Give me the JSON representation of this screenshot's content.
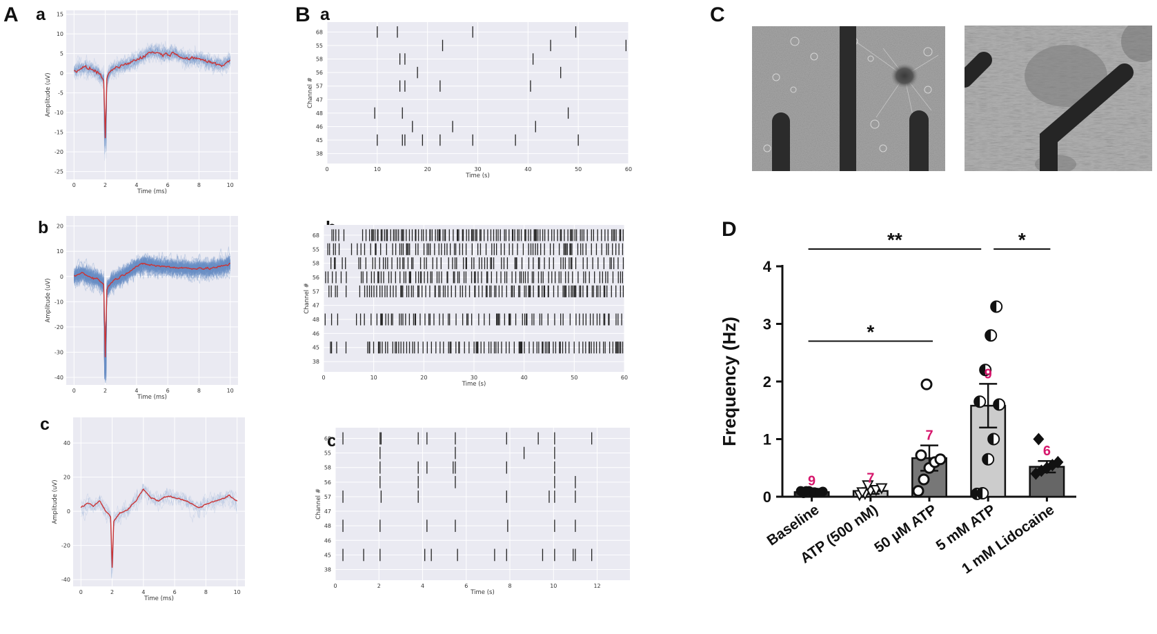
{
  "panels": {
    "A": "A",
    "B": "B",
    "C": "C",
    "D": "D",
    "sub_a": "a",
    "sub_b": "b",
    "sub_c": "c"
  },
  "colors": {
    "mean_trace": "#cc3333",
    "individual_traces": "#6a8fc7",
    "plot_background": "#eaeaf2",
    "spike_ticks": "#222222",
    "significance_count": "#d6176c"
  },
  "chart_data": [
    {
      "id": "Aa",
      "type": "line",
      "xlabel": "Time (ms)",
      "ylabel": "Amplitude (uV)",
      "xlim": [
        -0.5,
        10.5
      ],
      "ylim": [
        -27,
        16
      ],
      "xticks": [
        0,
        2,
        4,
        6,
        8,
        10
      ],
      "yticks": [
        15,
        10,
        5,
        0,
        -5,
        -10,
        -15,
        -20,
        -25
      ],
      "trace_count": 30,
      "noise": 4,
      "spike_min": -16.5,
      "mean_trace": [
        [
          0,
          0.5
        ],
        [
          0.5,
          1.5
        ],
        [
          1,
          1.2
        ],
        [
          1.5,
          0.3
        ],
        [
          1.9,
          -1.5
        ],
        [
          2.0,
          -16.5
        ],
        [
          2.1,
          -2
        ],
        [
          2.3,
          0.5
        ],
        [
          3,
          1.8
        ],
        [
          3.5,
          2.5
        ],
        [
          4,
          3.5
        ],
        [
          4.5,
          4.5
        ],
        [
          5,
          5.5
        ],
        [
          5.5,
          5
        ],
        [
          6,
          4.8
        ],
        [
          6.5,
          5.2
        ],
        [
          7,
          4
        ],
        [
          7.5,
          3.5
        ],
        [
          8,
          3.8
        ],
        [
          8.5,
          3
        ],
        [
          9,
          2.5
        ],
        [
          9.5,
          2
        ],
        [
          10,
          3.5
        ]
      ]
    },
    {
      "id": "Ab",
      "type": "line",
      "xlabel": "Time (ms)",
      "ylabel": "Amplitude (uV)",
      "xlim": [
        -0.5,
        10.5
      ],
      "ylim": [
        -43,
        24
      ],
      "xticks": [
        0,
        2,
        4,
        6,
        8,
        10
      ],
      "yticks": [
        20,
        10,
        0,
        -10,
        -20,
        -30,
        -40
      ],
      "trace_count": 90,
      "noise": 7,
      "spike_min": -32,
      "mean_trace": [
        [
          0,
          0
        ],
        [
          0.5,
          1.5
        ],
        [
          1,
          0
        ],
        [
          1.5,
          -1
        ],
        [
          1.9,
          -3
        ],
        [
          2.0,
          -32
        ],
        [
          2.1,
          -5
        ],
        [
          2.4,
          -2
        ],
        [
          3,
          0
        ],
        [
          3.5,
          2
        ],
        [
          4,
          4
        ],
        [
          4.5,
          5
        ],
        [
          5,
          4.5
        ],
        [
          5.5,
          4
        ],
        [
          6,
          4
        ],
        [
          6.5,
          3.5
        ],
        [
          7,
          3.5
        ],
        [
          7.5,
          3
        ],
        [
          8,
          3.5
        ],
        [
          8.5,
          3
        ],
        [
          9,
          3.5
        ],
        [
          9.5,
          4
        ],
        [
          10,
          5
        ]
      ]
    },
    {
      "id": "Ac",
      "type": "line",
      "xlabel": "Time (ms)",
      "ylabel": "Amplitude (uV)",
      "xlim": [
        -0.5,
        10.5
      ],
      "ylim": [
        -44,
        55
      ],
      "xticks": [
        0,
        2,
        4,
        6,
        8,
        10
      ],
      "yticks": [
        40,
        20,
        0,
        -20,
        -40
      ],
      "trace_count": 8,
      "noise": 10,
      "spike_min": -33,
      "mean_trace": [
        [
          0,
          2
        ],
        [
          0.4,
          5
        ],
        [
          0.8,
          3
        ],
        [
          1.2,
          6
        ],
        [
          1.6,
          0
        ],
        [
          1.9,
          -3
        ],
        [
          2.0,
          -33
        ],
        [
          2.1,
          -6
        ],
        [
          2.5,
          -1
        ],
        [
          3,
          1
        ],
        [
          3.5,
          6
        ],
        [
          4,
          13
        ],
        [
          4.5,
          8
        ],
        [
          5,
          6
        ],
        [
          5.5,
          9
        ],
        [
          6,
          8
        ],
        [
          6.5,
          7
        ],
        [
          7,
          5
        ],
        [
          7.5,
          2
        ],
        [
          8,
          4
        ],
        [
          8.5,
          6
        ],
        [
          9,
          7
        ],
        [
          9.5,
          9
        ],
        [
          10,
          6
        ]
      ]
    },
    {
      "id": "Ba",
      "type": "scatter",
      "xlabel": "Time (s)",
      "ylabel": "Channel #",
      "xlim": [
        0,
        60
      ],
      "xticks": [
        0,
        10,
        20,
        30,
        40,
        50,
        60
      ],
      "channels": [
        "68",
        "55",
        "58",
        "56",
        "57",
        "47",
        "48",
        "46",
        "45",
        "38"
      ],
      "spikes": {
        "68": [
          10,
          14,
          29,
          49.5
        ],
        "55": [
          23,
          44.5,
          59.5
        ],
        "58": [
          14.5,
          15.5,
          41
        ],
        "56": [
          18,
          46.5
        ],
        "57": [
          14.5,
          15.5,
          22.5,
          40.5
        ],
        "47": [],
        "48": [
          9.5,
          15,
          48
        ],
        "46": [
          17,
          25,
          41.5
        ],
        "45": [
          10,
          15,
          15.5,
          19,
          22.5,
          29,
          37.5,
          50
        ],
        "38": []
      }
    },
    {
      "id": "Bb",
      "type": "scatter",
      "xlabel": "Time (s)",
      "ylabel": "Channel #",
      "xlim": [
        0,
        60
      ],
      "xticks": [
        0,
        10,
        20,
        30,
        40,
        50,
        60
      ],
      "channels": [
        "68",
        "55",
        "58",
        "56",
        "57",
        "47",
        "48",
        "46",
        "45",
        "38"
      ],
      "density": {
        "68": 2.2,
        "55": 1.5,
        "58": 1.2,
        "56": 1.6,
        "57": 1.8,
        "47": 0,
        "48": 1.3,
        "46": 0,
        "45": 1.8,
        "38": 0
      }
    },
    {
      "id": "Bc",
      "type": "scatter",
      "xlabel": "Time (s)",
      "ylabel": "Channel #",
      "xlim": [
        0,
        13.5
      ],
      "xticks": [
        0,
        2,
        4,
        6,
        8,
        10,
        12
      ],
      "channels": [
        "68",
        "55",
        "58",
        "56",
        "57",
        "47",
        "48",
        "46",
        "45",
        "38"
      ],
      "spikes": {
        "68": [
          0.35,
          2.05,
          2.1,
          3.8,
          4.2,
          5.5,
          7.85,
          9.3,
          10.05,
          11.75
        ],
        "55": [
          2.05,
          5.5,
          8.65,
          10.05
        ],
        "58": [
          2.05,
          3.8,
          4.2,
          5.4,
          5.5,
          7.85,
          10.05
        ],
        "56": [
          2.05,
          3.8,
          5.5,
          10.05,
          11.0
        ],
        "57": [
          0.35,
          2.1,
          3.8,
          7.85,
          9.8,
          10.05,
          11.0
        ],
        "47": [],
        "48": [
          0.35,
          2.05,
          4.2,
          5.5,
          7.9,
          10.05,
          11.0
        ],
        "46": [],
        "45": [
          0.35,
          1.3,
          2.05,
          4.1,
          4.4,
          5.6,
          7.3,
          7.85,
          9.5,
          10.05,
          10.9,
          11.0,
          11.75
        ],
        "38": []
      }
    },
    {
      "id": "D",
      "type": "bar",
      "ylabel": "Frequency (Hz)",
      "ylim": [
        0,
        4
      ],
      "yticks": [
        0,
        1,
        2,
        3,
        4
      ],
      "categories": [
        "Baseline",
        "ATP (500 nM)",
        "50 µM ATP",
        "5 mM ATP",
        "1 mM Lidocaine"
      ],
      "values": [
        0.08,
        0.1,
        0.67,
        1.58,
        0.52
      ],
      "errors": [
        0.02,
        0.05,
        0.22,
        0.38,
        0.1
      ],
      "n_labels": [
        "9",
        "7",
        "7",
        "9",
        "6"
      ],
      "bar_colors": [
        "#333333",
        "#bbbbbb",
        "#777777",
        "#cccccc",
        "#666666"
      ],
      "markers": [
        "circle",
        "triangle-down",
        "circle-open",
        "circle-half",
        "diamond"
      ],
      "points": [
        [
          0.1,
          0.1,
          0.08,
          0.07,
          0.09,
          0.06,
          0.1,
          0.08,
          0.07
        ],
        [
          0.03,
          0.05,
          0.1,
          0.12,
          0.15,
          0.08,
          0.2
        ],
        [
          0.1,
          0.3,
          0.5,
          0.6,
          0.65,
          0.72,
          1.95
        ],
        [
          0.05,
          0.06,
          0.65,
          1.0,
          1.6,
          1.65,
          2.2,
          2.8,
          3.3
        ],
        [
          0.4,
          0.45,
          0.5,
          0.55,
          0.6,
          1.0
        ]
      ],
      "significance": [
        {
          "label": "**",
          "from": 0,
          "to": 3,
          "y": 4.3
        },
        {
          "label": "*",
          "from": 3,
          "to": 4,
          "y": 4.3
        },
        {
          "label": "*",
          "from": 0,
          "to": 2,
          "y": 2.7
        }
      ]
    }
  ]
}
